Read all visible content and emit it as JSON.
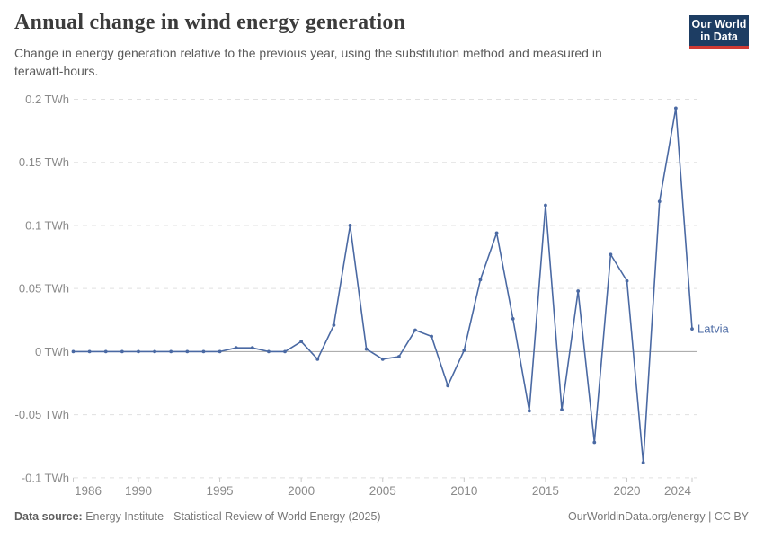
{
  "header": {
    "title": "Annual change in wind energy generation",
    "subtitle": "Change in energy generation relative to the previous year, using the substitution method and measured in terawatt-hours.",
    "logo": {
      "line1": "Our World",
      "line2": "in Data"
    }
  },
  "chart_data": {
    "type": "line",
    "title": "Annual change in wind energy generation",
    "unit": "TWh",
    "xlabel": "",
    "ylabel": "",
    "xlim": [
      1986,
      2024
    ],
    "ylim": [
      -0.1,
      0.2
    ],
    "x_ticks": [
      1986,
      1990,
      1995,
      2000,
      2005,
      2010,
      2015,
      2020,
      2024
    ],
    "y_ticks": [
      0.2,
      0.15,
      0.1,
      0.05,
      0,
      -0.05,
      -0.1
    ],
    "y_tick_suffix": " TWh",
    "grid": "dashed-horizontal",
    "zero_line": true,
    "legend_position": "end-of-line-label",
    "series": [
      {
        "name": "Latvia",
        "color": "#4a69a3",
        "x": [
          1986,
          1987,
          1988,
          1989,
          1990,
          1991,
          1992,
          1993,
          1994,
          1995,
          1996,
          1997,
          1998,
          1999,
          2000,
          2001,
          2002,
          2003,
          2004,
          2005,
          2006,
          2007,
          2008,
          2009,
          2010,
          2011,
          2012,
          2013,
          2014,
          2015,
          2016,
          2017,
          2018,
          2019,
          2020,
          2021,
          2022,
          2023,
          2024
        ],
        "values": [
          0,
          0,
          0,
          0,
          0,
          0,
          0,
          0,
          0,
          0,
          0.003,
          0.003,
          0,
          0,
          0.008,
          -0.006,
          0.021,
          0.1,
          0.002,
          -0.006,
          -0.004,
          0.017,
          0.012,
          -0.027,
          0.001,
          0.057,
          0.094,
          0.026,
          -0.047,
          0.116,
          -0.046,
          0.048,
          -0.072,
          0.077,
          0.056,
          -0.088,
          0.119,
          0.193,
          0.018
        ]
      }
    ]
  },
  "footer": {
    "datasource_label": "Data source:",
    "datasource_text": " Energy Institute - Statistical Review of World Energy (2025)",
    "rights": "OurWorldinData.org/energy | CC BY"
  },
  "colors": {
    "series_blue": "#4a69a3",
    "gridline": "#e0e0e0",
    "zero_line": "#a3a3a3",
    "tick_label": "#8a8a8a",
    "logo_navy": "#1d3d63",
    "logo_red": "#cf3a34"
  }
}
